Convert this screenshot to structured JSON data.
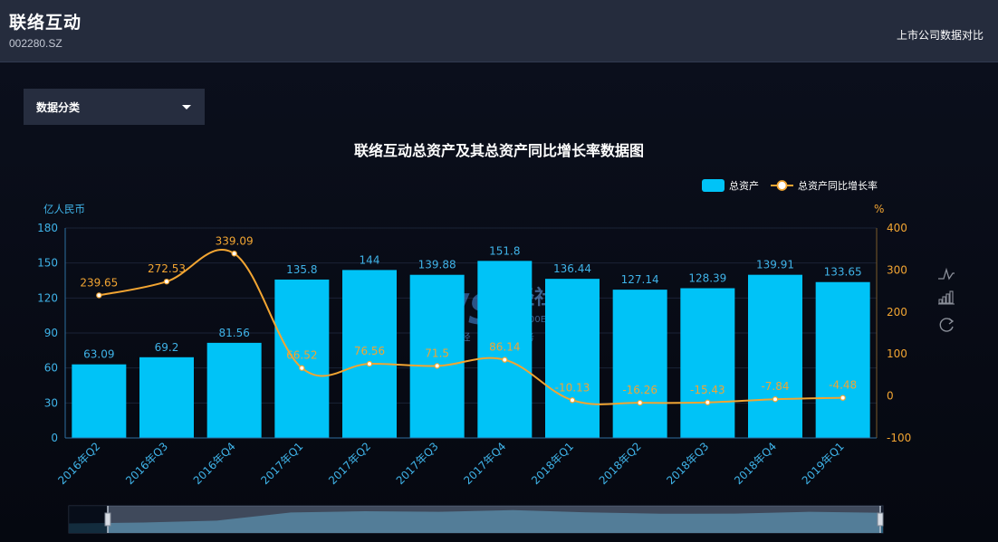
{
  "header": {
    "company_name": "联络互动",
    "stock_code": "002280.SZ",
    "compare_link": "上市公司数据对比"
  },
  "filter": {
    "dropdown_label": "数据分类"
  },
  "colors": {
    "bar": "#00c3f7",
    "line": "#f2a532",
    "left_axis_text": "#3fb3e8",
    "right_axis_text": "#f2a532",
    "bar_label": "#3fb3e8",
    "line_label": "#f2a532",
    "background": "#070b14",
    "header_bg": "#252c3d"
  },
  "toolbox": {
    "icons": [
      "line-chart-icon",
      "bar-chart-icon",
      "restore-icon"
    ]
  },
  "watermark": {
    "logo": "WS",
    "name": "网经社",
    "url": "WWW.100EC.CN",
    "slogan": "网络经济服务平台"
  },
  "chart_data": {
    "type": "bar",
    "title": "联络互动总资产及其总资产同比增长率数据图",
    "categories": [
      "2016年Q2",
      "2016年Q3",
      "2016年Q4",
      "2017年Q1",
      "2017年Q2",
      "2017年Q3",
      "2017年Q4",
      "2018年Q1",
      "2018年Q2",
      "2018年Q3",
      "2018年Q4",
      "2019年Q1"
    ],
    "series": [
      {
        "name": "总资产",
        "type": "bar",
        "axis": "left",
        "values": [
          63.09,
          69.2,
          81.56,
          135.8,
          144,
          139.88,
          151.8,
          136.44,
          127.14,
          128.39,
          139.91,
          133.65
        ]
      },
      {
        "name": "总资产同比增长率",
        "type": "line",
        "axis": "right",
        "values": [
          239.65,
          272.53,
          339.09,
          66.52,
          76.56,
          71.5,
          86.14,
          -10.13,
          -16.26,
          -15.43,
          -7.84,
          -4.48
        ]
      }
    ],
    "y_left": {
      "label": "亿人民币",
      "ticks": [
        0,
        30,
        60,
        90,
        120,
        150,
        180
      ],
      "range": [
        0,
        180
      ]
    },
    "y_right": {
      "label": "%",
      "ticks": [
        -100,
        0,
        100,
        200,
        300,
        400
      ],
      "range": [
        -100,
        400
      ]
    },
    "legend_position": "top-right",
    "grid": true,
    "data_zoom": true
  }
}
